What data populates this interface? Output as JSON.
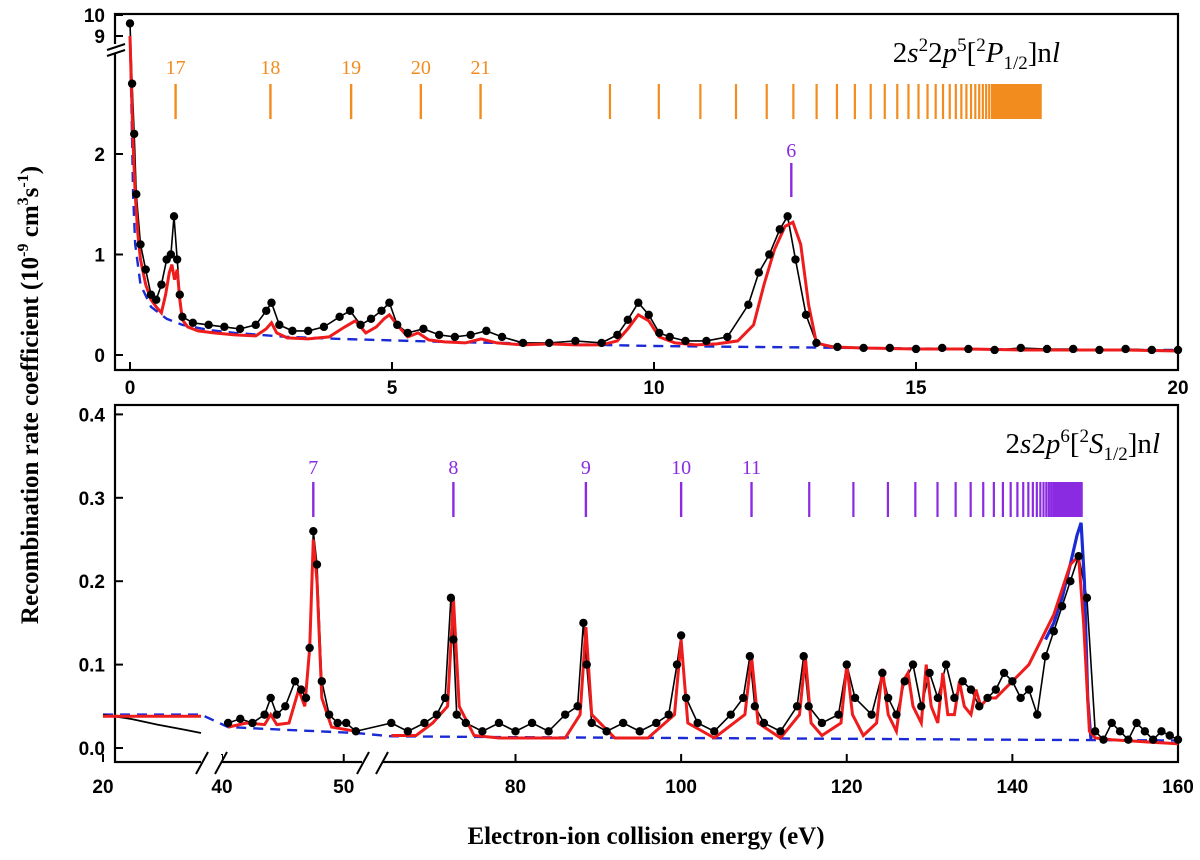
{
  "chart_data": [
    {
      "type": "scatter",
      "panel": "top",
      "xlim": [
        0,
        20
      ],
      "ylim": [
        0,
        3
      ],
      "y_axis_break": {
        "above": 2.7,
        "resumes_at": 9,
        "top_value": 10
      },
      "x_ticks": [
        "0",
        "5",
        "10",
        "15",
        "20"
      ],
      "y_ticks": [
        "0",
        "1",
        "2"
      ],
      "y_break_ticks": [
        "9",
        "10"
      ],
      "grid": false,
      "ylabel_main": "Recombination rate coefficient (10",
      "ylabel_exp1": "-9",
      "ylabel_mid": " cm",
      "ylabel_exp2": "3",
      "ylabel_s": "s",
      "ylabel_exp3": "-1",
      "ylabel_close": ")",
      "series_label": {
        "prefix": "2",
        "s": "s",
        "sup1": "2",
        "two": "2",
        "p": "p",
        "sup2": "5",
        "open": "[",
        "sup3": "2",
        "P": "P",
        "sub": "1/2",
        "close": "]n",
        "l": "l"
      },
      "series_label_color": "#F28C1E",
      "rydberg_markers": {
        "color": "#F28C1E",
        "labeled": [
          {
            "n": "17",
            "x": 0.87
          },
          {
            "n": "18",
            "x": 2.68
          },
          {
            "n": "19",
            "x": 4.22
          },
          {
            "n": "20",
            "x": 5.55
          },
          {
            "n": "21",
            "x": 6.69
          }
        ],
        "series_limit": 17.4
      },
      "inner_marker": {
        "n": "6",
        "x": 12.62,
        "color": "#8A2BE2"
      },
      "experiment_points": {
        "color": "#000000",
        "x": [
          0.0,
          0.04,
          0.08,
          0.12,
          0.2,
          0.3,
          0.4,
          0.5,
          0.6,
          0.7,
          0.78,
          0.84,
          0.9,
          0.95,
          1.0,
          1.2,
          1.5,
          1.8,
          2.1,
          2.4,
          2.6,
          2.7,
          2.85,
          3.1,
          3.4,
          3.7,
          4.0,
          4.2,
          4.4,
          4.6,
          4.8,
          4.95,
          5.1,
          5.3,
          5.6,
          5.9,
          6.2,
          6.5,
          6.8,
          7.1,
          7.5,
          8.0,
          8.5,
          9.0,
          9.3,
          9.5,
          9.7,
          9.9,
          10.1,
          10.3,
          10.6,
          11.0,
          11.4,
          11.8,
          12.0,
          12.2,
          12.4,
          12.55,
          12.7,
          12.9,
          13.1,
          13.5,
          14.0,
          14.5,
          15.0,
          15.5,
          16.0,
          16.5,
          17.0,
          17.5,
          18.0,
          18.5,
          19.0,
          19.5,
          20.0
        ],
        "y": [
          9.6,
          2.7,
          2.2,
          1.6,
          1.1,
          0.85,
          0.6,
          0.55,
          0.7,
          0.95,
          1.0,
          1.38,
          0.95,
          0.6,
          0.38,
          0.32,
          0.3,
          0.28,
          0.26,
          0.3,
          0.44,
          0.52,
          0.3,
          0.24,
          0.24,
          0.28,
          0.38,
          0.44,
          0.3,
          0.36,
          0.44,
          0.52,
          0.3,
          0.22,
          0.26,
          0.2,
          0.18,
          0.2,
          0.24,
          0.18,
          0.12,
          0.12,
          0.14,
          0.12,
          0.2,
          0.35,
          0.52,
          0.4,
          0.22,
          0.18,
          0.14,
          0.14,
          0.18,
          0.5,
          0.82,
          1.0,
          1.25,
          1.38,
          0.95,
          0.4,
          0.12,
          0.08,
          0.07,
          0.07,
          0.06,
          0.07,
          0.06,
          0.05,
          0.07,
          0.06,
          0.06,
          0.05,
          0.06,
          0.05,
          0.05
        ]
      },
      "fit_red": {
        "color": "#EE1C1C",
        "x": [
          0.0,
          0.03,
          0.06,
          0.1,
          0.15,
          0.2,
          0.3,
          0.4,
          0.5,
          0.6,
          0.68,
          0.75,
          0.8,
          0.85,
          0.9,
          0.95,
          1.0,
          1.1,
          1.3,
          1.6,
          2.0,
          2.4,
          2.6,
          2.7,
          2.8,
          3.0,
          3.4,
          3.8,
          4.1,
          4.3,
          4.5,
          4.7,
          4.85,
          4.95,
          5.1,
          5.3,
          5.5,
          5.7,
          6.0,
          6.4,
          6.7,
          7.0,
          7.5,
          8.0,
          8.5,
          9.0,
          9.3,
          9.5,
          9.7,
          9.9,
          10.1,
          10.4,
          10.8,
          11.2,
          11.6,
          11.9,
          12.1,
          12.3,
          12.5,
          12.65,
          12.8,
          12.95,
          13.1,
          13.4,
          14.0,
          15.0,
          16.0,
          17.0,
          18.0,
          19.0,
          20.0
        ],
        "y": [
          9.0,
          2.6,
          2.1,
          1.6,
          1.2,
          0.95,
          0.7,
          0.55,
          0.48,
          0.42,
          0.6,
          0.82,
          0.9,
          0.75,
          0.85,
          0.55,
          0.35,
          0.28,
          0.24,
          0.22,
          0.2,
          0.19,
          0.26,
          0.32,
          0.22,
          0.17,
          0.16,
          0.18,
          0.28,
          0.34,
          0.22,
          0.28,
          0.36,
          0.4,
          0.3,
          0.18,
          0.22,
          0.15,
          0.13,
          0.12,
          0.16,
          0.12,
          0.1,
          0.11,
          0.1,
          0.1,
          0.14,
          0.26,
          0.4,
          0.34,
          0.18,
          0.12,
          0.1,
          0.11,
          0.14,
          0.3,
          0.7,
          1.05,
          1.28,
          1.32,
          1.1,
          0.5,
          0.12,
          0.08,
          0.07,
          0.06,
          0.06,
          0.05,
          0.05,
          0.05,
          0.04
        ]
      },
      "fit_blue_dashed": {
        "color": "#1A2BD6",
        "x": [
          0.0,
          0.03,
          0.06,
          0.1,
          0.2,
          0.4,
          0.7,
          1.0,
          1.5,
          2.0,
          3.0,
          4.0,
          6.0,
          8.0,
          10.0,
          12.0,
          14.0,
          16.0,
          18.0,
          20.0
        ],
        "y": [
          9.0,
          2.4,
          1.6,
          1.1,
          0.7,
          0.48,
          0.36,
          0.3,
          0.25,
          0.22,
          0.18,
          0.16,
          0.13,
          0.11,
          0.09,
          0.08,
          0.07,
          0.06,
          0.05,
          0.05
        ]
      }
    },
    {
      "type": "scatter",
      "panel": "bottom",
      "ylim": [
        -0.02,
        0.4
      ],
      "y_ticks": [
        "0.0",
        "0.1",
        "0.2",
        "0.3",
        "0.4"
      ],
      "x_tick_labels": [
        "20",
        "40",
        "50",
        "80",
        "100",
        "120",
        "140",
        "160"
      ],
      "x_axis_breaks": [
        {
          "from": 38,
          "to": 40
        },
        {
          "from": 51.5,
          "to": 64
        }
      ],
      "grid": false,
      "xlabel": "Electron-ion collision energy (eV)",
      "series_label": {
        "prefix": "2",
        "s": "s",
        "two": "2",
        "p": "p",
        "sup1": "6",
        "open": "[",
        "sup2": "2",
        "S": "S",
        "sub": "1/2",
        "close": "]n",
        "l": "l"
      },
      "series_label_color": "#8A2BE2",
      "rydberg_markers": {
        "color": "#8A2BE2",
        "labeled": [
          {
            "n": "7",
            "x": 47.5
          },
          {
            "n": "8",
            "x": 72.5
          },
          {
            "n": "9",
            "x": 88.5
          },
          {
            "n": "10",
            "x": 100.0
          },
          {
            "n": "11",
            "x": 108.5
          }
        ],
        "series_limit": 148.5
      },
      "experiment_points": {
        "color": "#000000",
        "x": [
          40.5,
          41.5,
          42.5,
          43.5,
          44.0,
          44.5,
          45.2,
          46.0,
          46.5,
          46.9,
          47.2,
          47.5,
          47.8,
          48.2,
          48.8,
          49.5,
          50.2,
          51.0,
          65,
          67,
          69,
          70.5,
          71.5,
          72.2,
          72.5,
          72.9,
          74,
          76,
          78,
          80,
          82,
          84,
          86,
          87.5,
          88.2,
          88.6,
          89.2,
          91,
          93,
          95,
          97,
          98.5,
          99.5,
          100.0,
          100.6,
          102,
          104,
          106,
          107.5,
          108.3,
          108.9,
          110,
          112,
          114,
          114.8,
          115.4,
          117,
          119,
          120,
          121,
          123,
          124.3,
          125,
          126,
          127,
          128,
          129,
          130,
          131,
          132,
          133,
          134,
          135,
          136,
          137,
          138,
          139,
          140,
          141,
          142,
          143,
          144,
          145,
          146,
          147,
          148,
          149,
          150,
          151,
          152,
          153,
          154,
          155,
          156,
          157,
          158,
          159,
          160
        ],
        "y": [
          0.03,
          0.035,
          0.03,
          0.04,
          0.06,
          0.04,
          0.05,
          0.08,
          0.07,
          0.06,
          0.12,
          0.26,
          0.22,
          0.08,
          0.04,
          0.03,
          0.03,
          0.02,
          0.03,
          0.02,
          0.03,
          0.04,
          0.06,
          0.18,
          0.13,
          0.04,
          0.03,
          0.02,
          0.03,
          0.02,
          0.03,
          0.02,
          0.04,
          0.05,
          0.15,
          0.1,
          0.03,
          0.02,
          0.03,
          0.02,
          0.03,
          0.04,
          0.1,
          0.135,
          0.06,
          0.03,
          0.02,
          0.04,
          0.06,
          0.11,
          0.05,
          0.03,
          0.02,
          0.05,
          0.11,
          0.05,
          0.03,
          0.04,
          0.1,
          0.06,
          0.04,
          0.09,
          0.06,
          0.04,
          0.08,
          0.1,
          0.05,
          0.09,
          0.06,
          0.1,
          0.06,
          0.08,
          0.07,
          0.05,
          0.06,
          0.07,
          0.09,
          0.08,
          0.06,
          0.07,
          0.04,
          0.11,
          0.14,
          0.17,
          0.2,
          0.23,
          0.18,
          0.02,
          0.01,
          0.03,
          0.02,
          0.01,
          0.03,
          0.02,
          0.01,
          0.02,
          0.015,
          0.01
        ]
      },
      "fit_red": {
        "color": "#EE1C1C",
        "x": [
          20,
          38,
          40.5,
          42,
          43.5,
          44,
          44.5,
          45.5,
          46.3,
          46.8,
          47.2,
          47.5,
          47.8,
          48.2,
          49,
          51,
          65,
          68,
          70,
          71.8,
          72.5,
          73.2,
          75,
          78,
          82,
          86,
          87.8,
          88.5,
          89.2,
          92,
          96,
          99.2,
          100,
          100.8,
          104,
          107.7,
          108.5,
          109.3,
          112,
          114.3,
          115,
          115.7,
          117,
          119.3,
          120,
          120.7,
          122,
          123.6,
          124.3,
          125,
          126,
          126.8,
          127.4,
          128,
          129,
          129.6,
          130.2,
          131,
          131.6,
          132.2,
          133,
          133.6,
          134.2,
          135,
          135.6,
          136.2,
          137,
          138,
          139,
          140,
          141,
          142,
          143,
          144,
          145,
          146,
          147,
          148,
          148.6,
          149.3,
          150,
          152,
          155,
          160
        ],
        "y": [
          0.038,
          0.038,
          0.025,
          0.03,
          0.028,
          0.04,
          0.028,
          0.03,
          0.07,
          0.05,
          0.12,
          0.25,
          0.2,
          0.06,
          0.025,
          0.02,
          0.015,
          0.015,
          0.03,
          0.05,
          0.18,
          0.05,
          0.015,
          0.012,
          0.012,
          0.012,
          0.04,
          0.145,
          0.04,
          0.012,
          0.012,
          0.04,
          0.13,
          0.03,
          0.012,
          0.04,
          0.11,
          0.03,
          0.012,
          0.04,
          0.11,
          0.03,
          0.015,
          0.03,
          0.1,
          0.04,
          0.015,
          0.03,
          0.095,
          0.04,
          0.02,
          0.08,
          0.09,
          0.05,
          0.03,
          0.1,
          0.05,
          0.03,
          0.09,
          0.04,
          0.04,
          0.08,
          0.05,
          0.04,
          0.07,
          0.05,
          0.06,
          0.06,
          0.07,
          0.08,
          0.09,
          0.1,
          0.12,
          0.14,
          0.16,
          0.19,
          0.22,
          0.23,
          0.15,
          0.02,
          0.012,
          0.01,
          0.008,
          0.005
        ]
      },
      "fit_blue_solid": {
        "color": "#1A2BD6",
        "x": [
          144,
          145,
          146,
          147,
          147.8,
          148.3,
          148.7,
          149.1,
          149.5
        ],
        "y": [
          0.13,
          0.15,
          0.18,
          0.22,
          0.255,
          0.27,
          0.2,
          0.06,
          0.01
        ]
      },
      "fit_blue_dashed": {
        "color": "#1A2BD6",
        "x": [
          20,
          38,
          40.5,
          45,
          51,
          65,
          80,
          100,
          120,
          140,
          160
        ],
        "y": [
          0.04,
          0.04,
          0.025,
          0.022,
          0.018,
          0.014,
          0.013,
          0.012,
          0.011,
          0.01,
          0.009
        ]
      },
      "black_line_low": {
        "color": "#000000",
        "x": [
          20,
          25,
          30,
          35,
          38
        ],
        "y": [
          0.04,
          0.035,
          0.028,
          0.022,
          0.018
        ]
      }
    }
  ]
}
